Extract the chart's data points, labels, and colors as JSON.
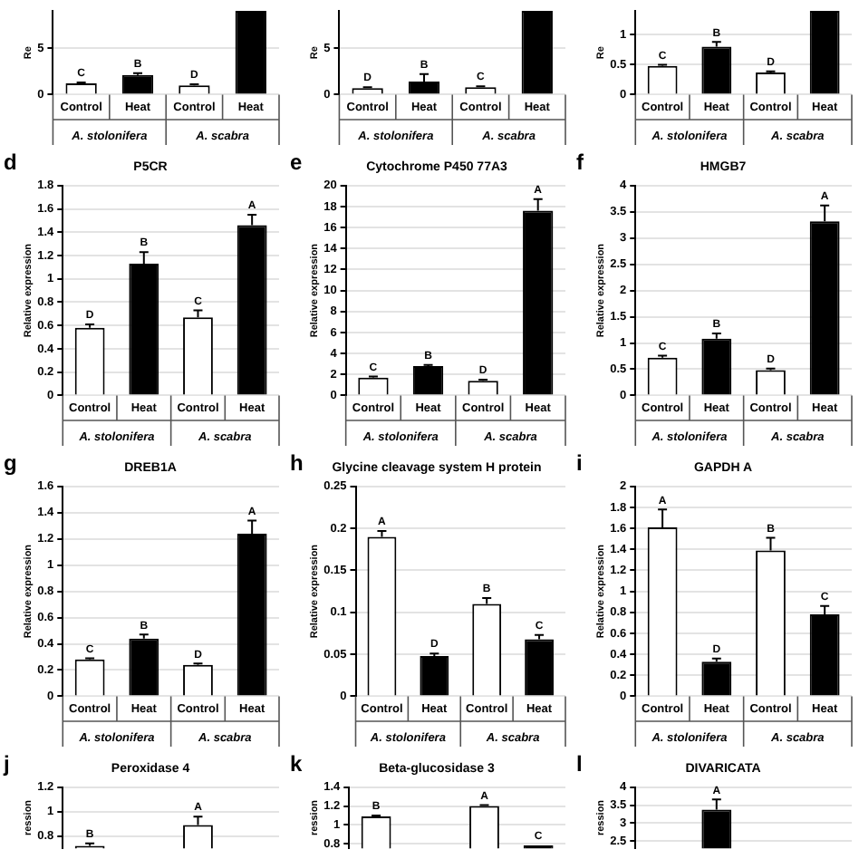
{
  "chart_data": [
    {
      "type": "bar",
      "ylabel": "Re",
      "categories": [
        "Control",
        "Heat",
        "Control",
        "Heat"
      ],
      "values": [
        1.2,
        2.1,
        1.0,
        9
      ],
      "colors": [
        "#ffffff",
        "#000000",
        "#ffffff",
        "#000000"
      ],
      "errors": [
        0.1,
        0.2,
        0.1,
        null
      ],
      "value_labels": [
        "C",
        "B",
        "D",
        null
      ],
      "ylim": [
        0,
        9
      ],
      "yticks": [
        0,
        5
      ],
      "grid": "y",
      "annotations": [
        "A. stolonifera",
        "A. scabra"
      ]
    },
    {
      "type": "bar",
      "ylabel": "Re",
      "categories": [
        "Control",
        "Heat",
        "Control",
        "Heat"
      ],
      "values": [
        0.7,
        1.4,
        0.8,
        9
      ],
      "colors": [
        "#ffffff",
        "#000000",
        "#ffffff",
        "#000000"
      ],
      "errors": [
        0.1,
        0.8,
        0.1,
        null
      ],
      "value_labels": [
        "D",
        "B",
        "C",
        null
      ],
      "ylim": [
        0,
        9
      ],
      "yticks": [
        0,
        5
      ],
      "grid": "y",
      "annotations": [
        "A. stolonifera",
        "A. scabra"
      ]
    },
    {
      "type": "bar",
      "ylabel": "Re",
      "categories": [
        "Control",
        "Heat",
        "Control",
        "Heat"
      ],
      "values": [
        0.48,
        0.8,
        0.37,
        1.4
      ],
      "colors": [
        "#ffffff",
        "#000000",
        "#ffffff",
        "#000000"
      ],
      "errors": [
        0.02,
        0.08,
        0.02,
        null
      ],
      "value_labels": [
        "C",
        "B",
        "D",
        null
      ],
      "ylim": [
        0,
        1.4
      ],
      "yticks": [
        0,
        0.5,
        1
      ],
      "grid": "y",
      "annotations": [
        "A. stolonifera",
        "A. scabra"
      ]
    },
    {
      "type": "bar",
      "title": "P5CR",
      "ylabel": "Relative expression",
      "categories": [
        "Control",
        "Heat",
        "Control",
        "Heat"
      ],
      "values": [
        0.58,
        1.13,
        0.67,
        1.46
      ],
      "colors": [
        "#ffffff",
        "#000000",
        "#ffffff",
        "#000000"
      ],
      "errors": [
        0.03,
        0.1,
        0.06,
        0.09
      ],
      "value_labels": [
        "D",
        "B",
        "C",
        "A"
      ],
      "ylim": [
        0,
        1.8
      ],
      "yticks": [
        0,
        0.2,
        0.4,
        0.6,
        0.8,
        1,
        1.2,
        1.4,
        1.6,
        1.8
      ],
      "grid": "y",
      "annotations": [
        "d",
        "A. stolonifera",
        "A. scabra"
      ]
    },
    {
      "type": "bar",
      "title": "Cytochrome P450 77A3",
      "ylabel": "Relative expression",
      "categories": [
        "Control",
        "Heat",
        "Control",
        "Heat"
      ],
      "values": [
        1.7,
        2.8,
        1.4,
        17.6
      ],
      "colors": [
        "#ffffff",
        "#000000",
        "#ffffff",
        "#000000"
      ],
      "errors": [
        0.1,
        0.1,
        0.1,
        1.1
      ],
      "value_labels": [
        "C",
        "B",
        "D",
        "A"
      ],
      "ylim": [
        0,
        20
      ],
      "yticks": [
        0,
        2,
        4,
        6,
        8,
        10,
        12,
        14,
        16,
        18,
        20
      ],
      "grid": "y",
      "annotations": [
        "e",
        "A. stolonifera",
        "A. scabra"
      ]
    },
    {
      "type": "bar",
      "title": "HMGB7",
      "ylabel": "Relative expression",
      "categories": [
        "Control",
        "Heat",
        "Control",
        "Heat"
      ],
      "values": [
        0.72,
        1.08,
        0.48,
        3.32
      ],
      "colors": [
        "#ffffff",
        "#000000",
        "#ffffff",
        "#000000"
      ],
      "errors": [
        0.04,
        0.1,
        0.03,
        0.3
      ],
      "value_labels": [
        "C",
        "B",
        "D",
        "A"
      ],
      "ylim": [
        0,
        4
      ],
      "yticks": [
        0,
        0.5,
        1,
        1.5,
        2,
        2.5,
        3,
        3.5,
        4
      ],
      "grid": "y",
      "annotations": [
        "f",
        "A. stolonifera",
        "A. scabra"
      ]
    },
    {
      "type": "bar",
      "title": "DREB1A",
      "ylabel": "Relative expression",
      "categories": [
        "Control",
        "Heat",
        "Control",
        "Heat"
      ],
      "values": [
        0.28,
        0.44,
        0.24,
        1.24
      ],
      "colors": [
        "#ffffff",
        "#000000",
        "#ffffff",
        "#000000"
      ],
      "errors": [
        0.01,
        0.03,
        0.01,
        0.1
      ],
      "value_labels": [
        "C",
        "B",
        "D",
        "A"
      ],
      "ylim": [
        0,
        1.6
      ],
      "yticks": [
        0,
        0.2,
        0.4,
        0.6,
        0.8,
        1,
        1.2,
        1.4,
        1.6
      ],
      "grid": "y",
      "annotations": [
        "g",
        "A. stolonifera",
        "A. scabra"
      ]
    },
    {
      "type": "bar",
      "title": "Glycine cleavage system H protein",
      "ylabel": "Relative expression",
      "categories": [
        "Control",
        "Heat",
        "Control",
        "Heat"
      ],
      "values": [
        0.19,
        0.048,
        0.11,
        0.068
      ],
      "colors": [
        "#ffffff",
        "#000000",
        "#ffffff",
        "#000000"
      ],
      "errors": [
        0.007,
        0.003,
        0.007,
        0.005
      ],
      "value_labels": [
        "A",
        "D",
        "B",
        "C"
      ],
      "ylim": [
        0,
        0.25
      ],
      "yticks": [
        0,
        0.05,
        0.1,
        0.15,
        0.2,
        0.25
      ],
      "grid": "y",
      "annotations": [
        "h",
        "A. stolonifera",
        "A. scabra"
      ]
    },
    {
      "type": "bar",
      "title": "GAPDH A",
      "ylabel": "Relative expression",
      "categories": [
        "Control",
        "Heat",
        "Control",
        "Heat"
      ],
      "values": [
        1.61,
        0.33,
        1.39,
        0.78
      ],
      "colors": [
        "#ffffff",
        "#000000",
        "#ffffff",
        "#000000"
      ],
      "errors": [
        0.17,
        0.03,
        0.12,
        0.08
      ],
      "value_labels": [
        "A",
        "D",
        "B",
        "C"
      ],
      "ylim": [
        0,
        2
      ],
      "yticks": [
        0,
        0.2,
        0.4,
        0.6,
        0.8,
        1,
        1.2,
        1.4,
        1.6,
        1.8,
        2
      ],
      "grid": "y",
      "annotations": [
        "i",
        "A. stolonifera",
        "A. scabra"
      ]
    },
    {
      "type": "bar",
      "title": "Peroxidase 4",
      "ylabel": "ression",
      "categories": [
        null,
        null,
        null,
        null
      ],
      "values": [
        0.72,
        null,
        0.89,
        null
      ],
      "colors": [
        "#ffffff",
        "#000000",
        "#ffffff",
        "#000000"
      ],
      "errors": [
        0.02,
        null,
        0.07,
        null
      ],
      "value_labels": [
        "B",
        null,
        "A",
        null
      ],
      "ylim": [
        0.7,
        1.2
      ],
      "yticks": [
        0.8,
        1,
        1.2
      ],
      "grid": "y",
      "annotations": [
        "j"
      ]
    },
    {
      "type": "bar",
      "title": "Beta-glucosidase 3",
      "ylabel": "ression",
      "categories": [
        null,
        null,
        null,
        null
      ],
      "values": [
        1.09,
        null,
        1.2,
        0.78
      ],
      "colors": [
        "#ffffff",
        "#000000",
        "#ffffff",
        "#000000"
      ],
      "errors": [
        0.01,
        null,
        0.01,
        null
      ],
      "value_labels": [
        "B",
        null,
        "A",
        "C"
      ],
      "ylim": [
        0.75,
        1.4
      ],
      "yticks": [
        0.8,
        1,
        1.2,
        1.4
      ],
      "grid": "y",
      "annotations": [
        "k"
      ]
    },
    {
      "type": "bar",
      "title": "DIVARICATA",
      "ylabel": "ression",
      "categories": [
        null,
        null,
        null,
        null
      ],
      "values": [
        null,
        3.38,
        null,
        null
      ],
      "colors": [
        "#ffffff",
        "#000000",
        "#ffffff",
        "#000000"
      ],
      "errors": [
        null,
        0.28,
        null,
        null
      ],
      "value_labels": [
        null,
        "A",
        null,
        null
      ],
      "ylim": [
        2.3,
        4
      ],
      "yticks": [
        2.5,
        3,
        3.5,
        4
      ],
      "grid": "y",
      "annotations": [
        "l"
      ]
    }
  ]
}
